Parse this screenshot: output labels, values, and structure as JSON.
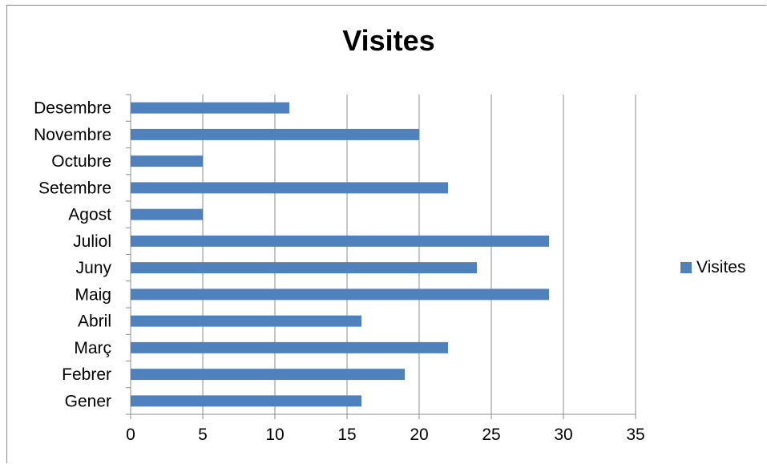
{
  "chart_data": {
    "type": "bar",
    "orientation": "horizontal",
    "title": "Visites",
    "categories": [
      "Gener",
      "Febrer",
      "Març",
      "Abril",
      "Maig",
      "Juny",
      "Juliol",
      "Agost",
      "Setembre",
      "Octubre",
      "Novembre",
      "Desembre"
    ],
    "series": [
      {
        "name": "Visites",
        "values": [
          16,
          19,
          22,
          16,
          29,
          24,
          29,
          5,
          22,
          5,
          20,
          11
        ],
        "color": "#4f81bd"
      }
    ],
    "xlim": [
      0,
      35
    ],
    "xticks": [
      0,
      5,
      10,
      15,
      20,
      25,
      30,
      35
    ],
    "xlabel": "",
    "ylabel": "",
    "grid": "vertical",
    "legend_position": "right"
  },
  "legend": {
    "label": "Visites",
    "color": "#4f81bd"
  }
}
